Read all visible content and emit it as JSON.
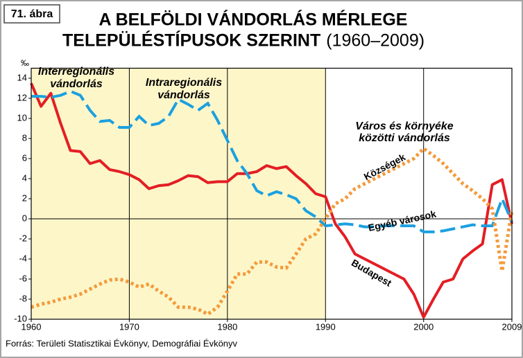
{
  "chart_data": {
    "type": "line",
    "figure_label": "71. ábra",
    "title_line1": "A BELFÖLDI VÁNDORLÁS MÉRLEGE",
    "title_line2": "TELEPÜLÉSTÍPUSOK SZERINT",
    "title_years": "(1960–2009)",
    "y_unit": "‰",
    "annotations": [
      "Interregionális",
      "vándorlás",
      "Intraregionális",
      "vándorlás",
      "Város és környéke",
      "közötti vándorlás"
    ],
    "source": "Forrás: Területi Statisztikai Évkönyv, Demográfiai Évkönyv",
    "x": [
      1960,
      1961,
      1962,
      1963,
      1964,
      1965,
      1966,
      1967,
      1968,
      1969,
      1970,
      1971,
      1972,
      1973,
      1974,
      1975,
      1976,
      1977,
      1978,
      1979,
      1980,
      1981,
      1982,
      1983,
      1984,
      1985,
      1986,
      1987,
      1988,
      1989,
      1990,
      1991,
      1992,
      1993,
      1994,
      1995,
      1996,
      1997,
      1998,
      1999,
      2000,
      2001,
      2002,
      2003,
      2004,
      2005,
      2006,
      2007,
      2008,
      2009
    ],
    "series": [
      {
        "name": "Budapest",
        "color": "#e31e24",
        "values": [
          13.5,
          11.2,
          12.5,
          9.5,
          6.8,
          6.7,
          5.5,
          5.8,
          4.9,
          4.7,
          4.4,
          3.9,
          3.0,
          3.3,
          3.4,
          3.8,
          4.3,
          4.2,
          3.6,
          3.7,
          3.7,
          4.5,
          4.5,
          4.7,
          5.3,
          5.0,
          5.2,
          4.3,
          3.5,
          2.5,
          2.2,
          -0.5,
          -1.8,
          -3.5,
          -4.0,
          -4.5,
          -5.0,
          -5.5,
          -6.0,
          -7.5,
          -9.8,
          -8.0,
          -6.3,
          -6.0,
          -4.0,
          -3.2,
          -2.5,
          3.4,
          3.9,
          -0.5
        ]
      },
      {
        "name": "Egyéb városok",
        "color": "#1ba0e0",
        "values": [
          12.2,
          12.2,
          12.1,
          12.3,
          12.7,
          12.3,
          10.8,
          9.7,
          9.8,
          9.1,
          9.1,
          10.2,
          9.3,
          9.5,
          10.2,
          11.9,
          11.4,
          10.8,
          11.5,
          9.8,
          7.8,
          5.8,
          4.5,
          2.8,
          2.3,
          2.7,
          2.4,
          2.0,
          0.8,
          0.2,
          -0.7,
          -0.6,
          -0.5,
          -0.6,
          -0.8,
          -0.8,
          -0.7,
          -0.7,
          -0.7,
          -0.7,
          -1.3,
          -1.3,
          -1.2,
          -1.0,
          -0.8,
          -0.6,
          -0.7,
          -0.7,
          2.0,
          -0.3
        ]
      },
      {
        "name": "Községek",
        "color": "#f39a3a",
        "values": [
          -8.8,
          -8.5,
          -8.3,
          -8.0,
          -7.8,
          -7.5,
          -7.0,
          -6.5,
          -6.1,
          -6.0,
          -6.3,
          -6.8,
          -6.5,
          -7.2,
          -7.8,
          -8.8,
          -8.8,
          -9.0,
          -9.5,
          -8.8,
          -7.2,
          -5.5,
          -5.5,
          -4.3,
          -4.3,
          -4.8,
          -4.9,
          -3.5,
          -2.0,
          -1.5,
          0.0,
          1.5,
          2.0,
          3.0,
          3.5,
          4.0,
          4.5,
          5.0,
          5.5,
          6.0,
          7.0,
          6.3,
          5.5,
          4.5,
          3.5,
          2.8,
          2.0,
          1.0,
          -5.2,
          0.8
        ]
      }
    ],
    "xlim": [
      1960,
      2009
    ],
    "xticks": [
      1960,
      1970,
      1980,
      1990,
      2000,
      2009
    ],
    "ylim": [
      -10,
      15
    ],
    "yticks": [
      -10,
      -8,
      -6,
      -4,
      -2,
      0,
      2,
      4,
      6,
      8,
      10,
      12,
      14
    ]
  }
}
